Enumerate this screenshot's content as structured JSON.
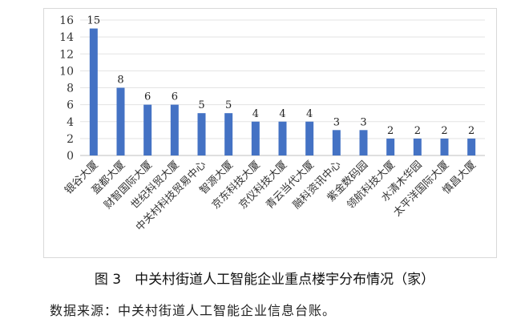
{
  "chart_data": {
    "type": "bar",
    "categories": [
      "银谷大厦",
      "盈都大厦",
      "财智国际大厦",
      "世纪科贸大厦",
      "中关村科技贸易中心",
      "智源大厦",
      "京东科技大厦",
      "京仪科技大厦",
      "青云当代大厦",
      "融科资讯中心",
      "紫金数码园",
      "领航科技大厦",
      "水清木华园",
      "太平洋国际大厦",
      "慎昌大厦"
    ],
    "values": [
      15,
      8,
      6,
      6,
      5,
      5,
      4,
      4,
      4,
      3,
      3,
      2,
      2,
      2,
      2
    ],
    "ylim": [
      0,
      16
    ],
    "yticks": [
      0,
      2,
      4,
      6,
      8,
      10,
      12,
      14,
      16
    ],
    "grid": true,
    "data_labels": true,
    "bar_color": "#4472C4",
    "title": "图 3　中关村街道人工智能企业重点楼宇分布情况（家）",
    "source": "数据来源：中关村街道人工智能企业信息台账。"
  }
}
